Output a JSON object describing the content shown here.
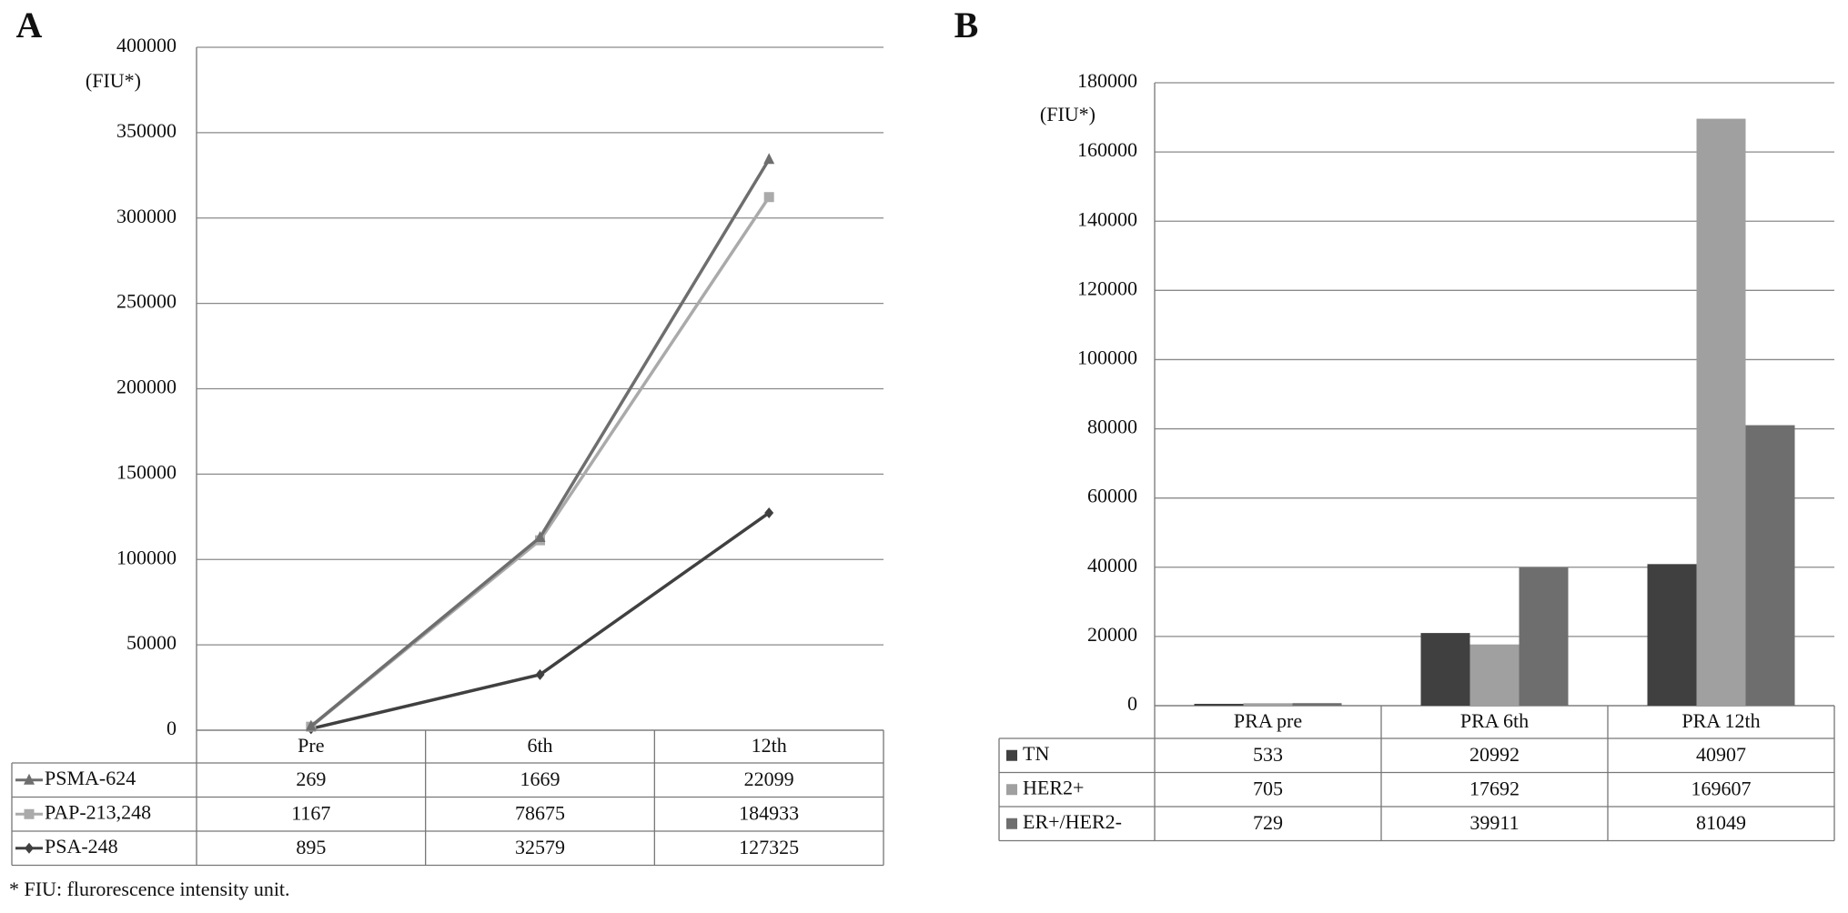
{
  "chart_data": [
    {
      "type": "stacked_line",
      "panel_label": "A",
      "y_unit_label": "(FIU*)",
      "categories": [
        "Pre",
        "6th",
        "12th"
      ],
      "series": [
        {
          "name": "PSMA-624",
          "color": "#6e6e6e",
          "marker": "triangle",
          "values": [
            269,
            1669,
            22099
          ]
        },
        {
          "name": "PAP-213,248",
          "color": "#aaaaaa",
          "marker": "square",
          "values": [
            1167,
            78675,
            184933
          ]
        },
        {
          "name": "PSA-248",
          "color": "#404040",
          "marker": "diamond",
          "values": [
            895,
            32579,
            127325
          ]
        }
      ],
      "ylim": [
        0,
        400000
      ],
      "yticks": [
        0,
        50000,
        100000,
        150000,
        200000,
        250000,
        300000,
        350000,
        400000
      ],
      "grid": true,
      "footnote": "* FIU:  flurorescence intensity unit."
    },
    {
      "type": "bar",
      "panel_label": "B",
      "y_unit_label": "(FIU*)",
      "categories": [
        "PRA pre",
        "PRA 6th",
        "PRA 12th"
      ],
      "series": [
        {
          "name": "TN",
          "color": "#404040",
          "values": [
            533,
            20992,
            40907
          ]
        },
        {
          "name": "HER2+",
          "color": "#a0a0a0",
          "values": [
            705,
            17692,
            169607
          ]
        },
        {
          "name": "ER+/HER2-",
          "color": "#6e6e6e",
          "values": [
            729,
            39911,
            81049
          ]
        }
      ],
      "ylim": [
        0,
        180000
      ],
      "yticks": [
        0,
        20000,
        40000,
        60000,
        80000,
        100000,
        120000,
        140000,
        160000,
        180000
      ],
      "grid": true
    }
  ]
}
